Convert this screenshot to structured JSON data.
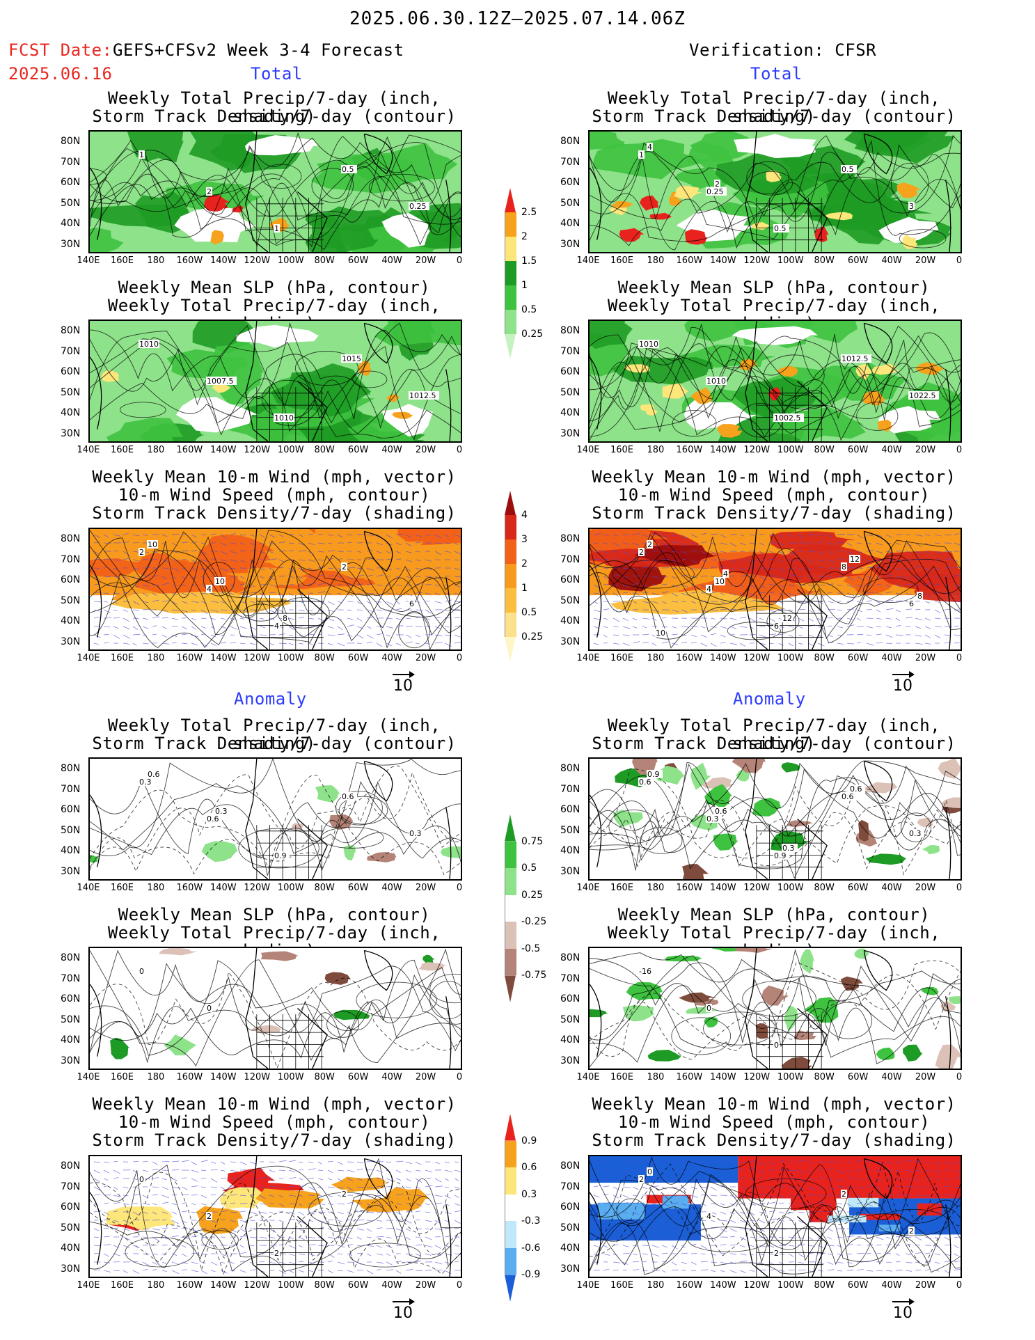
{
  "header": {
    "title": "2025.06.30.12Z—2025.07.14.06Z",
    "fcst_label": "FCST Date:",
    "fcst_date": "2025.06.16",
    "model": "GEFS+CFSv2 Week 3-4 Forecast",
    "verification": "Verification: CFSR"
  },
  "sections": {
    "total": "Total",
    "anomaly": "Anomaly"
  },
  "panel_titles": {
    "precip_storm": [
      "Weekly Total Precip/7-day (inch, shading)",
      "Storm Track Density/7-day (contour)"
    ],
    "slp_precip": [
      "Weekly Mean SLP (hPa, contour)",
      "Weekly Total Precip/7-day (inch, shading)"
    ],
    "wind_storm": [
      "Weekly Mean 10-m Wind (mph, vector)",
      "10-m Wind Speed (mph, contour)",
      "Storm Track Density/7-day (shading)"
    ]
  },
  "axes": {
    "lat": [
      "80N",
      "70N",
      "60N",
      "50N",
      "40N",
      "30N"
    ],
    "lon": [
      "140E",
      "160E",
      "180",
      "160W",
      "140W",
      "120W",
      "100W",
      "80W",
      "60W",
      "40W",
      "20W",
      "0"
    ]
  },
  "vector_reference": "10",
  "colorbars": {
    "total_precip": {
      "labels": [
        "2.5",
        "2",
        "1.5",
        "1",
        "0.5",
        "0.25"
      ],
      "colors": [
        "#e8231d",
        "#f7a21c",
        "#fde67a",
        "#1e9b24",
        "#3ec23f",
        "#8ee28a",
        "#c6f1c0"
      ]
    },
    "total_storm": {
      "labels": [
        "4",
        "3",
        "2",
        "1",
        "0.5",
        "0.25"
      ],
      "colors": [
        "#9c0d0d",
        "#d8281a",
        "#f26119",
        "#f79a1d",
        "#fbbe3e",
        "#fde08c",
        "#fff6c8"
      ]
    },
    "anom_precip": {
      "labels": [
        "0.75",
        "0.5",
        "0.25",
        "-0.25",
        "-0.5",
        "-0.75"
      ],
      "colors": [
        "#1e9b24",
        "#3ec23f",
        "#8ee28a",
        "#ffffff",
        "#dcc1b7",
        "#b38477",
        "#7e4b3c"
      ]
    },
    "anom_storm": {
      "labels": [
        "0.9",
        "0.6",
        "0.3",
        "-0.3",
        "-0.6",
        "-0.9"
      ],
      "colors": [
        "#e8231d",
        "#f7a21c",
        "#fde67a",
        "#ffffff",
        "#bfe8f8",
        "#5aaef0",
        "#1a5fd6"
      ]
    }
  },
  "contour_labels": {
    "fc_total_precip": [
      "1",
      "2",
      "1",
      "0.5",
      "0.25"
    ],
    "ob_total_precip": [
      "1",
      "0.25",
      "0.5",
      "0.5",
      "3",
      "4",
      "2"
    ],
    "fc_total_slp": [
      "1010",
      "1007.5",
      "1010",
      "1015",
      "1012.5"
    ],
    "ob_total_slp": [
      "1010",
      "1010",
      "1002.5",
      "1012.5",
      "1022.5"
    ],
    "fc_total_wind": [
      "2",
      "4",
      "4",
      "2",
      "6",
      "10",
      "10",
      "8"
    ],
    "ob_total_wind": [
      "2",
      "4",
      "6",
      "8",
      "6",
      "2",
      "10",
      "12",
      "12",
      "8",
      "10",
      "4"
    ],
    "fc_anom_precip": [
      "0.3",
      "0.6",
      "0.9",
      "0.6",
      "0.3",
      "0.6",
      "0.3"
    ],
    "ob_anom_precip": [
      "0.6",
      "0.3",
      "0.9",
      "0.6",
      "0.3",
      "0.9",
      "0.6",
      "0.3",
      "0.6"
    ],
    "fc_anom_slp": [
      "0",
      "0"
    ],
    "ob_anom_slp": [
      "-16",
      "0",
      "0"
    ],
    "fc_anom_wind": [
      "0",
      "2",
      "2",
      "2"
    ],
    "ob_anom_wind": [
      "2",
      "4",
      "2",
      "2",
      "2",
      "0"
    ]
  }
}
